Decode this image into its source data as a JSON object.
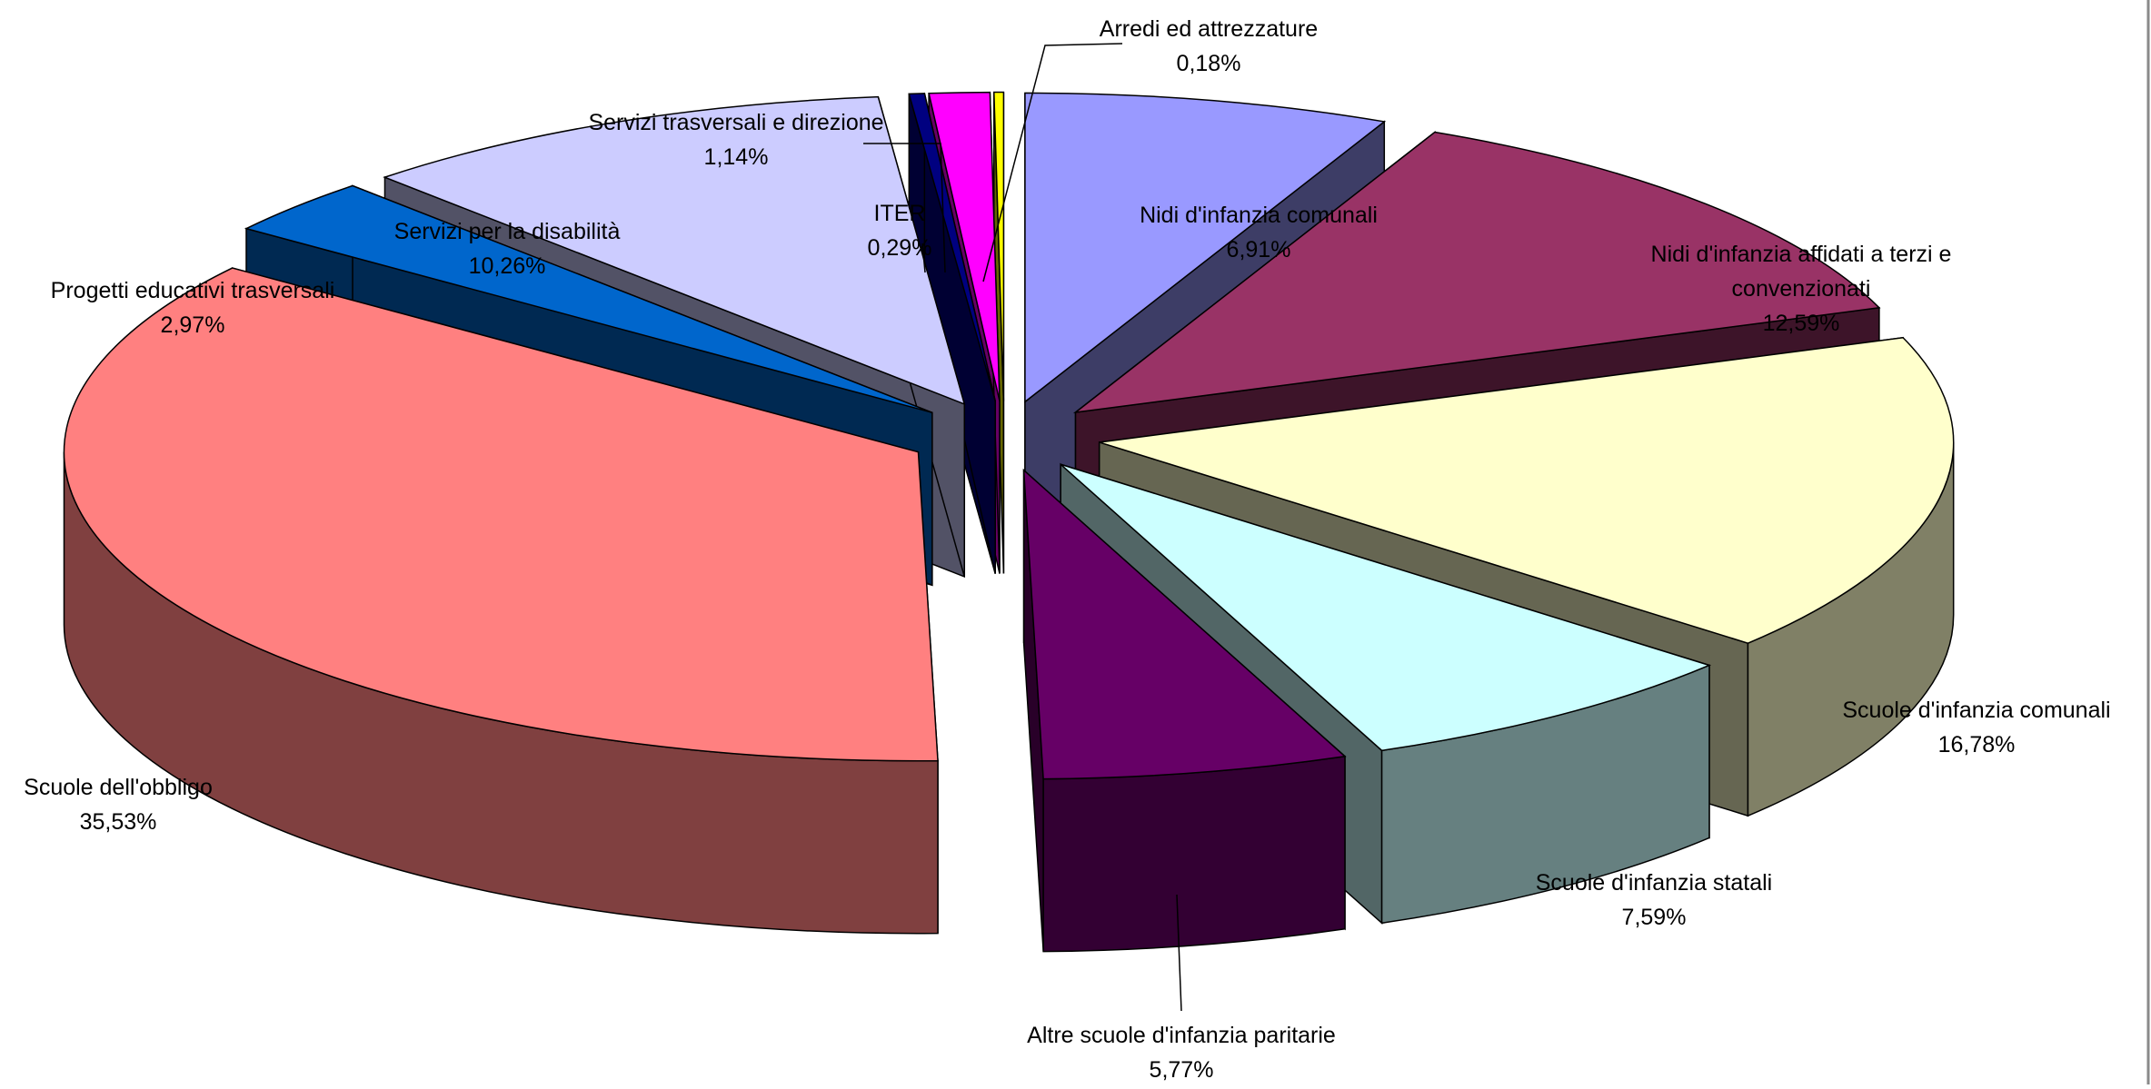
{
  "chart_data": {
    "type": "pie",
    "title": "",
    "slices": [
      {
        "label": "Nidi d'infanzia comunali",
        "value": 6.91,
        "value_label": "6,91%",
        "color": "#9999ff"
      },
      {
        "label": "Nidi d'infanzia affidati a terzi e convenzionati",
        "label_lines": [
          "Nidi d'infanzia affidati a terzi e",
          "convenzionati"
        ],
        "value": 12.59,
        "value_label": "12,59%",
        "color": "#993366"
      },
      {
        "label": "Scuole d'infanzia comunali",
        "value": 16.78,
        "value_label": "16,78%",
        "color": "#ffffcc"
      },
      {
        "label": "Scuole d'infanzia statali",
        "value": 7.59,
        "value_label": "7,59%",
        "color": "#ccffff"
      },
      {
        "label": "Altre scuole d'infanzia paritarie",
        "value": 5.77,
        "value_label": "5,77%",
        "color": "#660066"
      },
      {
        "label": "Scuole dell'obbligo",
        "value": 35.53,
        "value_label": "35,53%",
        "color": "#ff8080"
      },
      {
        "label": "Progetti educativi trasversali",
        "value": 2.97,
        "value_label": "2,97%",
        "color": "#0066cc"
      },
      {
        "label": "Servizi per la disabilità",
        "value": 10.26,
        "value_label": "10,26%",
        "color": "#ccccff"
      },
      {
        "label": "ITER",
        "value": 0.29,
        "value_label": "0,29%",
        "color": "#000080"
      },
      {
        "label": "Servizi trasversali e direzione",
        "value": 1.14,
        "value_label": "1,14%",
        "color": "#ff00ff"
      },
      {
        "label": "Arredi ed attrezzature",
        "value": 0.18,
        "value_label": "0,18%",
        "color": "#ffff00"
      }
    ],
    "style": "3d-exploded",
    "legend": "none",
    "data_labels": "category and percentage"
  }
}
